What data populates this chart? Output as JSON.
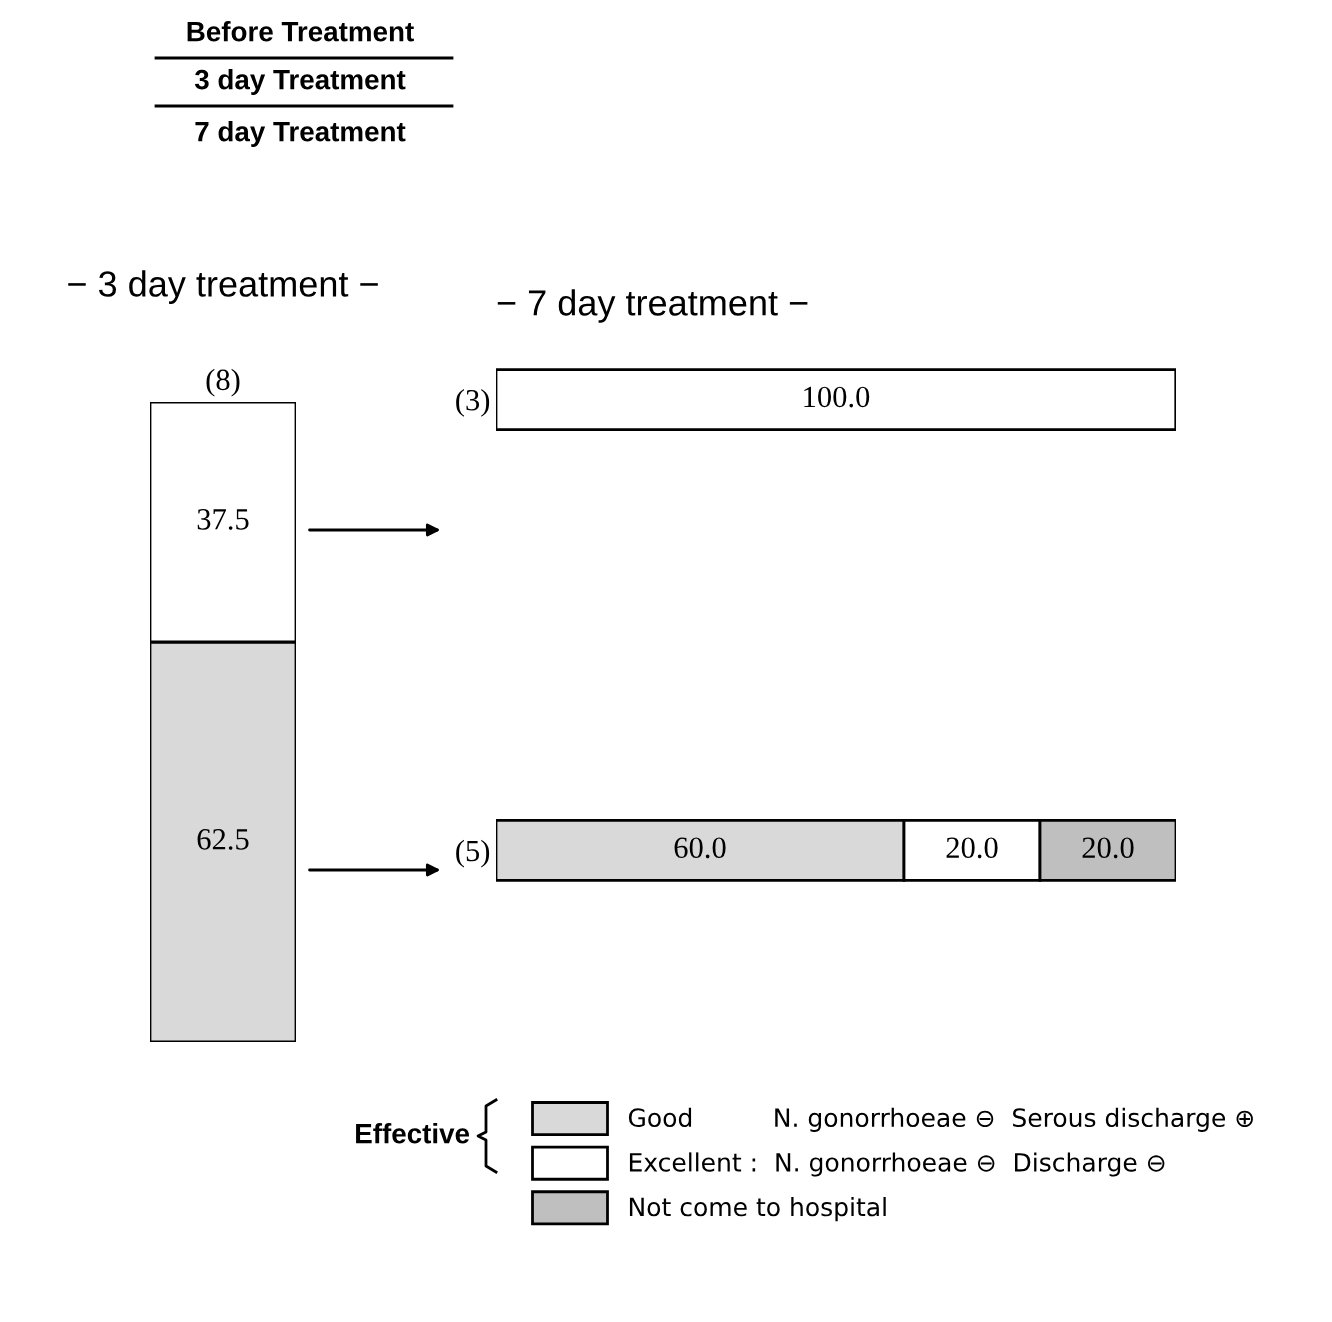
{
  "chart_data": [
    {
      "type": "bar",
      "stacked": true,
      "title": "− 3 day treatment −",
      "categories": [
        "(8)"
      ],
      "data_labels": true,
      "annotations": [
        "Before Treatment",
        "3 day Treatment",
        "7 day Treatment"
      ],
      "series": [
        {
          "color": "#d9d9d9",
          "values": [
            62.5
          ]
        },
        {
          "color": "#ffffff",
          "values": [
            37.5
          ]
        }
      ]
    },
    {
      "type": "bar",
      "stacked": true,
      "orientation": "horizontal",
      "title": "− 7 day treatment −",
      "categories": [
        "(3)",
        "(5)"
      ],
      "legend": "bottom",
      "annotations": [
        "Effective"
      ],
      "series": [
        {
          "name": "Good          N. gonorrhoeae ⊖  Serous discharge ⊕",
          "color": "#d9d9d9",
          "values": [
            null,
            60.0
          ],
          "value_labels": [
            null,
            "60.0"
          ]
        },
        {
          "name": "Excellent :  N. gonorrhoeae ⊖  Discharge ⊖",
          "color": "#ffffff",
          "values": [
            100.0,
            20.0
          ],
          "value_labels": [
            "100.0",
            "20.0"
          ]
        },
        {
          "name": "Not come to hospital",
          "color": "#bfbfbf",
          "values": [
            null,
            20.0
          ],
          "value_labels": [
            null,
            "20.0"
          ]
        }
      ]
    }
  ]
}
